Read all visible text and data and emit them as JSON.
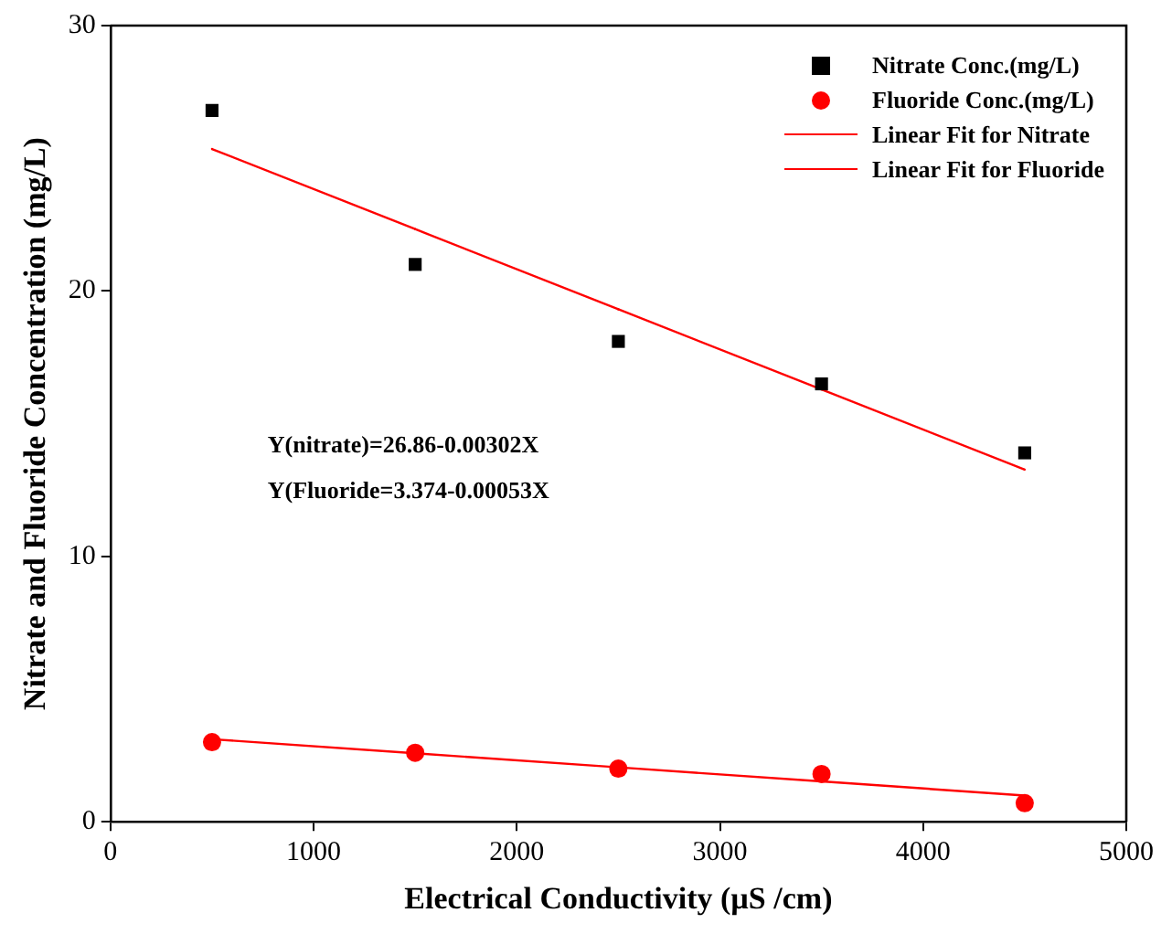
{
  "chart_data": {
    "type": "scatter",
    "xlabel": "Electrical Conductivity (µS /cm)",
    "ylabel": "Nitrate and Fluoride Concentration (mg/L)",
    "x": [
      500,
      1500,
      2500,
      3500,
      4500
    ],
    "series": [
      {
        "name": "Nitrate Conc.(mg/L)",
        "type": "scatter",
        "marker": "square",
        "color": "#000000",
        "values": [
          26.8,
          21.0,
          18.1,
          16.5,
          13.9
        ]
      },
      {
        "name": "Fluoride Conc.(mg/L)",
        "type": "scatter",
        "marker": "circle",
        "color": "#ff0000",
        "values": [
          3.0,
          2.6,
          2.0,
          1.8,
          0.7
        ]
      },
      {
        "name": "Linear Fit for Nitrate",
        "type": "line",
        "marker": "none",
        "color": "#ff0000",
        "values": [
          25.35,
          22.33,
          19.31,
          16.29,
          13.27
        ]
      },
      {
        "name": "Linear Fit for Fluoride",
        "type": "line",
        "marker": "none",
        "color": "#ff0000",
        "values": [
          3.11,
          2.58,
          2.05,
          1.52,
          0.99
        ]
      }
    ],
    "annotations": [
      "Y(nitrate)=26.86-0.00302X",
      "Y(Fluoride=3.374-0.00053X"
    ],
    "xlim": [
      0,
      5000
    ],
    "xticks": [
      0,
      1000,
      2000,
      3000,
      4000,
      5000
    ],
    "ylim": [
      0,
      30
    ],
    "yticks": [
      0,
      10,
      20,
      30
    ],
    "grid": false,
    "legend": "top right"
  }
}
